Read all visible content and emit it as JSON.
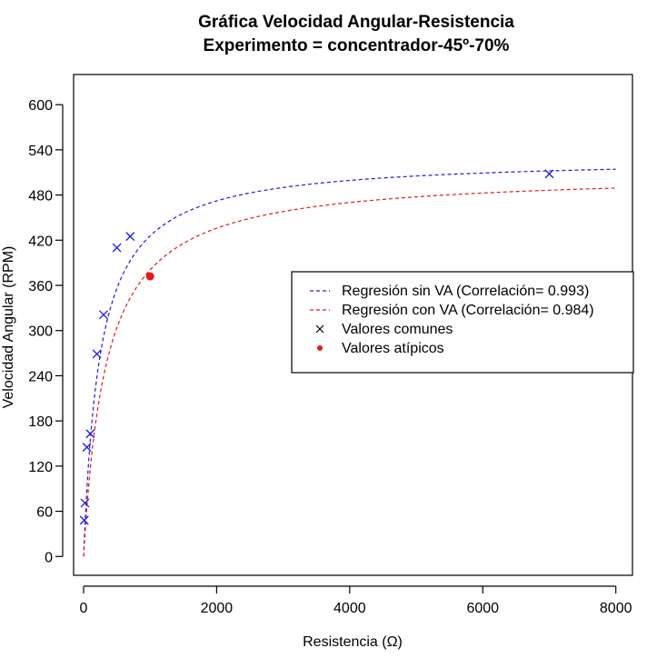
{
  "chart_data": {
    "type": "scatter",
    "title": "Gráfica Velocidad Angular-Resistencia",
    "subtitle": "Experimento = concentrador-45º-70%",
    "xlabel": "Resistencia (Ω)",
    "ylabel": "Velocidad Angular (RPM)",
    "xlim": [
      -150,
      8250
    ],
    "ylim": [
      -25,
      640
    ],
    "x_ticks": [
      0,
      2000,
      4000,
      6000,
      8000
    ],
    "y_ticks": [
      0,
      60,
      120,
      180,
      240,
      300,
      360,
      420,
      480,
      540,
      600
    ],
    "grid": false,
    "legend_position": "center-right",
    "legend": [
      {
        "label": "Regresión sin VA (Correlación= 0.993)",
        "kind": "dashed-line",
        "color": "#1a1ae6"
      },
      {
        "label": "Regresión con VA (Correlación= 0.984)",
        "kind": "dashed-line",
        "color": "#e61a1a"
      },
      {
        "label": "Valores comunes",
        "kind": "x-marker",
        "color": "#000000"
      },
      {
        "label": "Valores atípicos",
        "kind": "dot",
        "color": "#e61a1a"
      }
    ],
    "series": [
      {
        "name": "Valores comunes",
        "marker": "x",
        "color": "#1a1ae6",
        "points": [
          [
            10,
            48
          ],
          [
            20,
            71
          ],
          [
            50,
            145
          ],
          [
            100,
            163
          ],
          [
            200,
            269
          ],
          [
            300,
            321
          ],
          [
            500,
            410
          ],
          [
            700,
            425
          ],
          [
            7000,
            508
          ]
        ]
      },
      {
        "name": "Valores atípicos",
        "marker": "dot",
        "color": "#e61a1a",
        "points": [
          [
            1000,
            372
          ]
        ]
      }
    ],
    "regression_curves": [
      {
        "name": "Regresión sin VA (Correlación= 0.993)",
        "color": "#1a1ae6",
        "vmax": 530,
        "k": 245,
        "x_range": [
          0,
          8000
        ]
      },
      {
        "name": "Regresión con VA (Correlación= 0.984)",
        "color": "#e61a1a",
        "vmax": 510,
        "k": 340,
        "x_range": [
          0,
          8000
        ]
      }
    ]
  }
}
